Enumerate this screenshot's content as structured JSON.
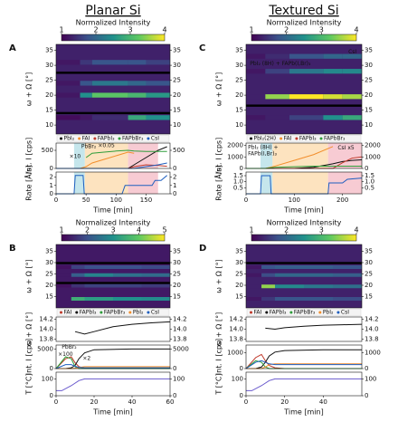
{
  "column_titles": [
    "Planar Si",
    "Textured Si"
  ],
  "chart_data": [
    {
      "type": "heatmap",
      "panel_label": "A",
      "colorbar_title": "Normalized Intensity",
      "clim": [
        1,
        4
      ],
      "cticks": [
        1,
        2,
        3,
        4
      ],
      "ylabel": "ω + Ω [°]",
      "ylim": [
        7,
        37
      ],
      "yticks": [
        10,
        15,
        20,
        25,
        30,
        35
      ],
      "xlim": [
        0,
        190
      ],
      "background": 1.3,
      "x": [
        0,
        40,
        60,
        120,
        150
      ],
      "bands": [
        {
          "y": 20,
          "values": [
            1.2,
            2.5,
            3.2,
            3.0,
            2.6
          ]
        },
        {
          "y": 24,
          "values": [
            1.2,
            1.8,
            2.2,
            2.0,
            1.8
          ]
        },
        {
          "y": 31,
          "values": [
            1.2,
            1.5,
            1.8,
            1.8,
            1.6
          ]
        },
        {
          "y": 12.5,
          "values": [
            1.1,
            1.2,
            1.4,
            2.8,
            2.5
          ]
        }
      ],
      "masked": [
        27.5,
        14
      ]
    },
    {
      "type": "line",
      "ylabel": "Int. I [cps]",
      "xlim": [
        0,
        190
      ],
      "ylim": [
        0,
        700
      ],
      "yticks": [
        0,
        500
      ],
      "x": [
        0,
        40,
        50,
        60,
        80,
        100,
        120,
        130,
        150,
        170,
        185
      ],
      "regions": [
        {
          "x0": 30,
          "x1": 48,
          "color": "#c5e6ec"
        },
        {
          "x0": 48,
          "x1": 120,
          "color": "#fde3bf"
        },
        {
          "x0": 120,
          "x1": 170,
          "color": "#f7cbd3"
        }
      ],
      "series": [
        {
          "name": "PbI₂",
          "color": "#111111",
          "values": [
            0,
            0,
            0,
            0,
            0,
            0,
            0,
            100,
            300,
            500,
            600
          ]
        },
        {
          "name": "FAI",
          "color": "#f28e2b",
          "values": [
            null,
            0,
            50,
            150,
            250,
            350,
            450,
            420,
            null,
            null,
            null
          ]
        },
        {
          "name": "FAPbI₃",
          "color": "#c0392b",
          "values": [
            0,
            0,
            0,
            0,
            0,
            0,
            0,
            50,
            100,
            80,
            60
          ]
        },
        {
          "name": "FAPbBr₃",
          "color": "#2e9d3a",
          "values": [
            null,
            null,
            300,
            420,
            450,
            480,
            500,
            480,
            470,
            470,
            470
          ]
        },
        {
          "name": "CsI",
          "color": "#1f5fbf",
          "values": [
            0,
            0,
            0,
            0,
            0,
            0,
            0,
            0,
            50,
            100,
            150
          ]
        }
      ],
      "annotations": [
        {
          "text": "PbBr₂",
          "x": 42,
          "y": 600
        },
        {
          "text": "×10",
          "x": 22,
          "y": 330
        },
        {
          "text": "×0.05",
          "x": 70,
          "y": 620
        }
      ]
    },
    {
      "type": "line",
      "ylabel": "Rate [Å/s]",
      "xlim": [
        0,
        190
      ],
      "ylim": [
        0,
        2.6
      ],
      "yticks": [
        0,
        1,
        2
      ],
      "xticks": [
        0,
        50,
        100,
        150
      ],
      "xlabel": "Time [min]",
      "regions": [
        {
          "x0": 30,
          "x1": 48,
          "color": "#c5e6ec"
        },
        {
          "x0": 48,
          "x1": 120,
          "color": "#fde3bf"
        },
        {
          "x0": 120,
          "x1": 170,
          "color": "#f7cbd3"
        }
      ],
      "x": [
        0,
        30,
        32,
        45,
        47,
        110,
        115,
        160,
        165,
        175,
        185
      ],
      "color": "#1f5fbf",
      "values": [
        0,
        0,
        2.2,
        2.2,
        0,
        0,
        1.0,
        1.0,
        1.6,
        1.6,
        2.2
      ]
    },
    {
      "type": "heatmap",
      "panel_label": "B",
      "colorbar_title": "Normalized Intensity",
      "clim": [
        1,
        5
      ],
      "cticks": [
        1,
        2,
        3,
        4,
        5
      ],
      "ylabel": "ω + Ω [°]",
      "ylim": [
        10,
        38
      ],
      "yticks": [
        15,
        20,
        25,
        30,
        35
      ],
      "xlim": [
        0,
        60
      ],
      "background": 1.3,
      "x": [
        0,
        8,
        15,
        30,
        45
      ],
      "bands": [
        {
          "y": 24.5,
          "values": [
            1.3,
            2.2,
            2.8,
            2.5,
            2.4
          ]
        },
        {
          "y": 14,
          "values": [
            1.3,
            3.5,
            3.2,
            3.0,
            2.9
          ]
        },
        {
          "y": 28,
          "values": [
            1.2,
            1.8,
            2.0,
            2.0,
            1.9
          ]
        },
        {
          "y": 19.8,
          "values": [
            1.2,
            1.6,
            1.8,
            1.8,
            1.7
          ]
        }
      ],
      "masked": [
        29.8,
        21
      ]
    },
    {
      "type": "line",
      "ylabel": "ω + Ω [°]",
      "xlim": [
        0,
        60
      ],
      "ylim": [
        13.75,
        14.25
      ],
      "yticks": [
        13.8,
        {
          "value": 14,
          "label": "14.0"
        },
        14.2
      ],
      "x": [
        0,
        5,
        10,
        15,
        20,
        30,
        40,
        50,
        60
      ],
      "series_legend_above": true,
      "legend": [
        {
          "name": "FAI",
          "color": "#c0392b"
        },
        {
          "name": "FAPbI₃",
          "color": "#111111"
        },
        {
          "name": "FAPbBr₃",
          "color": "#2e9d3a"
        },
        {
          "name": "PbI₂",
          "color": "#f28e2b"
        },
        {
          "name": "CsI",
          "color": "#1f5fbf"
        }
      ],
      "color": "#111111",
      "values": [
        null,
        null,
        13.95,
        13.9,
        13.95,
        14.05,
        14.1,
        14.13,
        14.15
      ]
    },
    {
      "type": "line",
      "ylabel": "Int. I [cps]",
      "xlim": [
        0,
        60
      ],
      "ylim": [
        0,
        6000
      ],
      "yticks": [
        0,
        5000
      ],
      "x": [
        0,
        5,
        8,
        10,
        12,
        15,
        20,
        40,
        60
      ],
      "series": [
        {
          "color": "#c0392b",
          "values": [
            0,
            2500,
            3000,
            1500,
            500,
            100,
            0,
            0,
            0
          ]
        },
        {
          "color": "#111111",
          "values": [
            0,
            0,
            200,
            800,
            2500,
            4000,
            4800,
            5000,
            5000
          ]
        },
        {
          "color": "#2e9d3a",
          "values": [
            0,
            3000,
            2500,
            500,
            0,
            0,
            0,
            0,
            0
          ]
        },
        {
          "color": "#f28e2b",
          "values": [
            0,
            0,
            0,
            100,
            300,
            500,
            500,
            500,
            500
          ]
        },
        {
          "color": "#1f5fbf",
          "values": [
            0,
            1000,
            1000,
            600,
            300,
            200,
            200,
            200,
            200
          ]
        }
      ],
      "annotations": [
        {
          "text": "PbBr₂",
          "x": 3,
          "y": 5400
        },
        {
          "text": "×100",
          "x": 1,
          "y": 3600
        },
        {
          "text": "×2",
          "x": 14,
          "y": 2500
        }
      ]
    },
    {
      "type": "line",
      "ylabel": "T [°C]",
      "xlim": [
        0,
        60
      ],
      "ylim": [
        0,
        140
      ],
      "yticks": [
        0,
        100
      ],
      "xticks": [
        0,
        20,
        40,
        60
      ],
      "xlabel": "Time [min]",
      "x": [
        0,
        3,
        8,
        12,
        15,
        20,
        60
      ],
      "color": "#6a5acd",
      "values": [
        30,
        30,
        60,
        90,
        100,
        100,
        100
      ]
    },
    {
      "type": "heatmap",
      "panel_label": "C",
      "colorbar_title": "Normalized Intensity",
      "clim": [
        1,
        4
      ],
      "cticks": [
        1,
        2,
        3,
        4
      ],
      "ylabel": "ω + Ω [°]",
      "ylim": [
        7,
        37
      ],
      "yticks": [
        10,
        15,
        20,
        25,
        30,
        35
      ],
      "xlim": [
        0,
        240
      ],
      "background": 1.3,
      "x": [
        0,
        40,
        90,
        160,
        200
      ],
      "bands": [
        {
          "y": 19.5,
          "values": [
            1.3,
            3.5,
            4,
            3.8,
            3.6
          ]
        },
        {
          "y": 28,
          "values": [
            1.2,
            1.6,
            2.2,
            2.4,
            2.4
          ]
        },
        {
          "y": 12.5,
          "values": [
            1.2,
            1.3,
            1.6,
            2.5,
            2.8
          ]
        },
        {
          "y": 33,
          "values": [
            1.2,
            1.4,
            1.8,
            2.0,
            2.0
          ]
        }
      ],
      "masked": [
        16.5
      ],
      "annotations": [
        {
          "text": "PbI₂ (8H) + FAPb(I,Br)₃",
          "x": 8,
          "y": 30.5
        },
        {
          "text": "CsI",
          "x": 212,
          "y": 34.5
        }
      ]
    },
    {
      "type": "line",
      "ylabel": "Int. I [cps]",
      "xlim": [
        0,
        240
      ],
      "ylim": [
        0,
        2200
      ],
      "yticks": [
        0,
        1000,
        2000
      ],
      "x": [
        0,
        40,
        60,
        100,
        140,
        180,
        200,
        220,
        240
      ],
      "regions": [
        {
          "x0": 30,
          "x1": 55,
          "color": "#c5e6ec"
        },
        {
          "x0": 55,
          "x1": 170,
          "color": "#fde3bf"
        },
        {
          "x0": 170,
          "x1": 240,
          "color": "#f7cbd3"
        }
      ],
      "series": [
        {
          "name": "PbI₂(2H)",
          "color": "#111111",
          "values": [
            0,
            0,
            0,
            0,
            100,
            400,
            600,
            700,
            750
          ]
        },
        {
          "name": "FAI",
          "color": "#f28e2b",
          "values": [
            0,
            0,
            200,
            700,
            1200,
            1900,
            null,
            null,
            null
          ]
        },
        {
          "name": "FAPbI₃",
          "color": "#c0392b",
          "values": [
            0,
            0,
            0,
            0,
            0,
            0,
            500,
            900,
            1000
          ]
        },
        {
          "name": "FAPbBr₃",
          "color": "#2e9d3a",
          "values": [
            0,
            0,
            100,
            150,
            200,
            200,
            200,
            200,
            200
          ]
        }
      ],
      "annotations": [
        {
          "text": "PbI₂ (8H) +",
          "x": 4,
          "y": 1800
        },
        {
          "text": "FAPb(I,Br)₃",
          "x": 4,
          "y": 1250
        },
        {
          "text": "CsI x5",
          "x": 190,
          "y": 1750
        }
      ]
    },
    {
      "type": "line",
      "ylabel": "Rate [Å/s]",
      "xlim": [
        0,
        240
      ],
      "ylim": [
        0,
        1.8
      ],
      "yticks": [
        0.5,
        {
          "value": 1,
          "label": "1.0"
        },
        1.5
      ],
      "xticks": [
        0,
        100,
        200
      ],
      "xlabel": "Time [min]",
      "regions": [
        {
          "x0": 30,
          "x1": 55,
          "color": "#c5e6ec"
        },
        {
          "x0": 55,
          "x1": 170,
          "color": "#fde3bf"
        },
        {
          "x0": 170,
          "x1": 240,
          "color": "#f7cbd3"
        }
      ],
      "x": [
        0,
        30,
        32,
        50,
        52,
        170,
        172,
        200,
        210,
        240
      ],
      "color": "#1f5fbf",
      "values": [
        0,
        0,
        1.5,
        1.5,
        0,
        0,
        0.9,
        0.9,
        1.2,
        1.3
      ]
    },
    {
      "type": "heatmap",
      "panel_label": "D",
      "colorbar_title": "Normalized Intensity",
      "clim": [
        1,
        4
      ],
      "cticks": [
        1,
        2,
        3,
        4
      ],
      "ylabel": "ω + Ω [°]",
      "ylim": [
        10,
        38
      ],
      "yticks": [
        15,
        20,
        25,
        30,
        35
      ],
      "xlim": [
        0,
        60
      ],
      "background": 1.3,
      "x": [
        0,
        8,
        15,
        30,
        45
      ],
      "bands": [
        {
          "y": 19.5,
          "values": [
            1.3,
            3.5,
            2.4,
            2.2,
            2.1
          ]
        },
        {
          "y": 28,
          "values": [
            1.2,
            1.8,
            1.9,
            1.9,
            1.8
          ]
        },
        {
          "y": 24.5,
          "values": [
            1.2,
            1.7,
            2.0,
            2.0,
            1.9
          ]
        },
        {
          "y": 14,
          "values": [
            1.2,
            1.5,
            1.8,
            1.8,
            1.7
          ]
        }
      ],
      "masked": [
        29.8
      ]
    },
    {
      "type": "line",
      "ylabel": "ω + Ω [°]",
      "xlim": [
        0,
        60
      ],
      "ylim": [
        13.75,
        14.25
      ],
      "yticks": [
        13.8,
        {
          "value": 14,
          "label": "14.0"
        },
        14.2
      ],
      "x": [
        0,
        5,
        10,
        15,
        20,
        30,
        40,
        50,
        60
      ],
      "legend": [
        {
          "name": "FAI",
          "color": "#c0392b"
        },
        {
          "name": "FAPbI₃",
          "color": "#111111"
        },
        {
          "name": "FAPbBr₃",
          "color": "#2e9d3a"
        },
        {
          "name": "PbI₂",
          "color": "#f28e2b"
        },
        {
          "name": "CsI",
          "color": "#1f5fbf"
        }
      ],
      "color": "#111111",
      "values": [
        null,
        null,
        14.02,
        14.0,
        14.03,
        14.06,
        14.08,
        14.09,
        14.1
      ]
    },
    {
      "type": "line",
      "ylabel": "Int. I [cps]",
      "xlim": [
        0,
        60
      ],
      "ylim": [
        0,
        1500
      ],
      "yticks": [
        0,
        1000
      ],
      "x": [
        0,
        5,
        8,
        10,
        12,
        15,
        20,
        40,
        60
      ],
      "series": [
        {
          "color": "#c0392b",
          "values": [
            0,
            700,
            900,
            500,
            200,
            50,
            0,
            0,
            0
          ]
        },
        {
          "color": "#111111",
          "values": [
            0,
            0,
            100,
            400,
            800,
            1050,
            1150,
            1200,
            1200
          ]
        },
        {
          "color": "#2e9d3a",
          "values": [
            0,
            500,
            400,
            100,
            0,
            0,
            0,
            0,
            0
          ]
        },
        {
          "color": "#f28e2b",
          "values": [
            0,
            0,
            0,
            100,
            250,
            300,
            300,
            300,
            300
          ]
        },
        {
          "color": "#1f5fbf",
          "values": [
            0,
            400,
            500,
            400,
            300,
            250,
            250,
            250,
            250
          ]
        }
      ]
    },
    {
      "type": "line",
      "ylabel": "T [°C]",
      "xlim": [
        0,
        60
      ],
      "ylim": [
        0,
        140
      ],
      "yticks": [
        0,
        100
      ],
      "xticks": [
        0,
        20,
        40
      ],
      "xlabel": "Time [min]",
      "x": [
        0,
        3,
        8,
        12,
        15,
        20,
        60
      ],
      "color": "#6a5acd",
      "values": [
        30,
        30,
        60,
        90,
        100,
        100,
        100
      ]
    }
  ]
}
